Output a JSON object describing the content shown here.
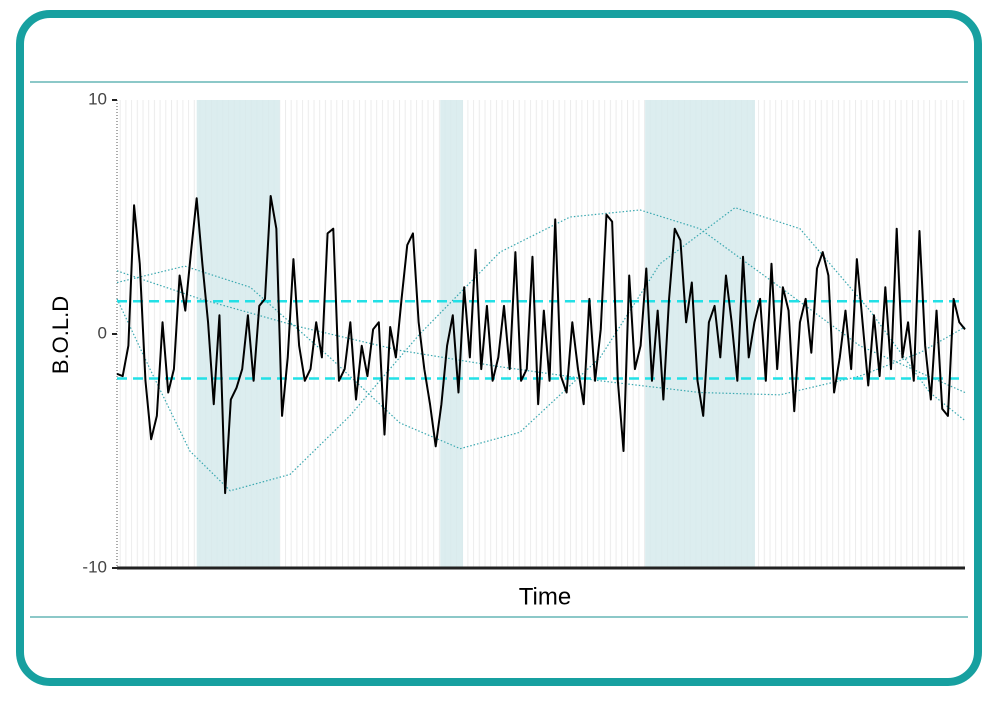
{
  "chart_data": {
    "type": "line",
    "ylabel": "B.O.L.D",
    "xlabel": "Time",
    "ylim": [
      -10,
      10
    ],
    "yticks": [
      -10,
      0,
      10
    ],
    "xlim": [
      0,
      149
    ],
    "color": "#000000",
    "values": [
      -1.7,
      -1.8,
      -0.5,
      5.5,
      3.0,
      -2.0,
      -4.5,
      -3.5,
      0.5,
      -2.5,
      -1.5,
      2.5,
      1.0,
      3.5,
      5.8,
      3.0,
      0.5,
      -3.0,
      0.8,
      -6.8,
      -2.8,
      -2.3,
      -1.5,
      0.8,
      -2.0,
      1.2,
      1.5,
      5.9,
      4.5,
      -3.5,
      -1.0,
      3.2,
      -0.5,
      -2.0,
      -1.5,
      0.5,
      -1.0,
      4.3,
      4.5,
      -2.0,
      -1.5,
      0.5,
      -2.8,
      -0.5,
      -1.8,
      0.2,
      0.5,
      -4.3,
      0.3,
      -1.0,
      1.5,
      3.8,
      4.3,
      0.5,
      -1.5,
      -3.0,
      -4.8,
      -3.0,
      -0.5,
      0.8,
      -2.5,
      2.0,
      -1.0,
      3.6,
      -1.5,
      1.2,
      -2.0,
      -1.0,
      1.2,
      -1.5,
      3.5,
      -2.0,
      -1.5,
      3.3,
      -3.0,
      1.0,
      -2.0,
      4.9,
      -1.8,
      -2.5,
      0.5,
      -1.5,
      -3.0,
      1.5,
      -2.0,
      0.2,
      5.1,
      4.8,
      -2.0,
      -5.0,
      2.5,
      -1.5,
      -0.5,
      2.8,
      -2.0,
      1.0,
      -2.8,
      1.5,
      4.5,
      4.0,
      0.5,
      2.2,
      -2.0,
      -3.5,
      0.5,
      1.2,
      -1.0,
      2.5,
      0.5,
      -2.0,
      3.3,
      -1.0,
      0.5,
      1.5,
      -2.0,
      3.0,
      -1.5,
      2.0,
      1.0,
      -3.3,
      0.5,
      1.5,
      -0.8,
      2.8,
      3.5,
      2.5,
      -2.5,
      -1.0,
      1.0,
      -1.5,
      3.2,
      0.5,
      -2.2,
      0.8,
      -1.8,
      2.0,
      -1.5,
      4.5,
      -1.0,
      0.5,
      -2.0,
      4.4,
      -0.5,
      -2.8,
      1.0,
      -3.2,
      -3.5,
      1.5,
      0.5,
      0.2
    ],
    "thresholds": [
      1.4,
      -1.9
    ],
    "threshold_color": "#22e0e6",
    "bands": [
      [
        14,
        28.6
      ],
      [
        56.8,
        60.8
      ],
      [
        92.8,
        112.1
      ]
    ],
    "band_color": "#d6eaec",
    "curve_color": "#3aa8b0",
    "curves": [
      {
        "x": [
          0,
          5.8,
          12.8,
          19.9,
          30.4,
          40.9,
          53.2,
          67.3,
          79.6,
          91.9,
          102.4,
          116.5,
          130.5,
          149
        ],
        "values": [
          1.5,
          -1.5,
          -5,
          -6.7,
          -6,
          -3.5,
          0,
          3.5,
          5,
          5.3,
          4.5,
          2,
          -0.5,
          -2.5
        ]
      },
      {
        "x": [
          0,
          11.9,
          23.4,
          37.4,
          49.7,
          60.3,
          70.8,
          84.9,
          95.4,
          108.6,
          120,
          132.3,
          142.8,
          149
        ],
        "values": [
          2.2,
          2.9,
          2,
          -1,
          -3.8,
          -4.9,
          -4.2,
          -1,
          3,
          5.4,
          4.5,
          1,
          -2.5,
          -3.7
        ]
      },
      {
        "x": [
          0,
          14.6,
          32.2,
          49.7,
          67.3,
          84.9,
          102.4,
          116.5,
          130.5,
          141.1,
          149
        ],
        "values": [
          2.7,
          1.5,
          0.3,
          -0.7,
          -1.4,
          -2,
          -2.5,
          -2.6,
          -1.8,
          -0.8,
          0.3
        ]
      }
    ]
  }
}
